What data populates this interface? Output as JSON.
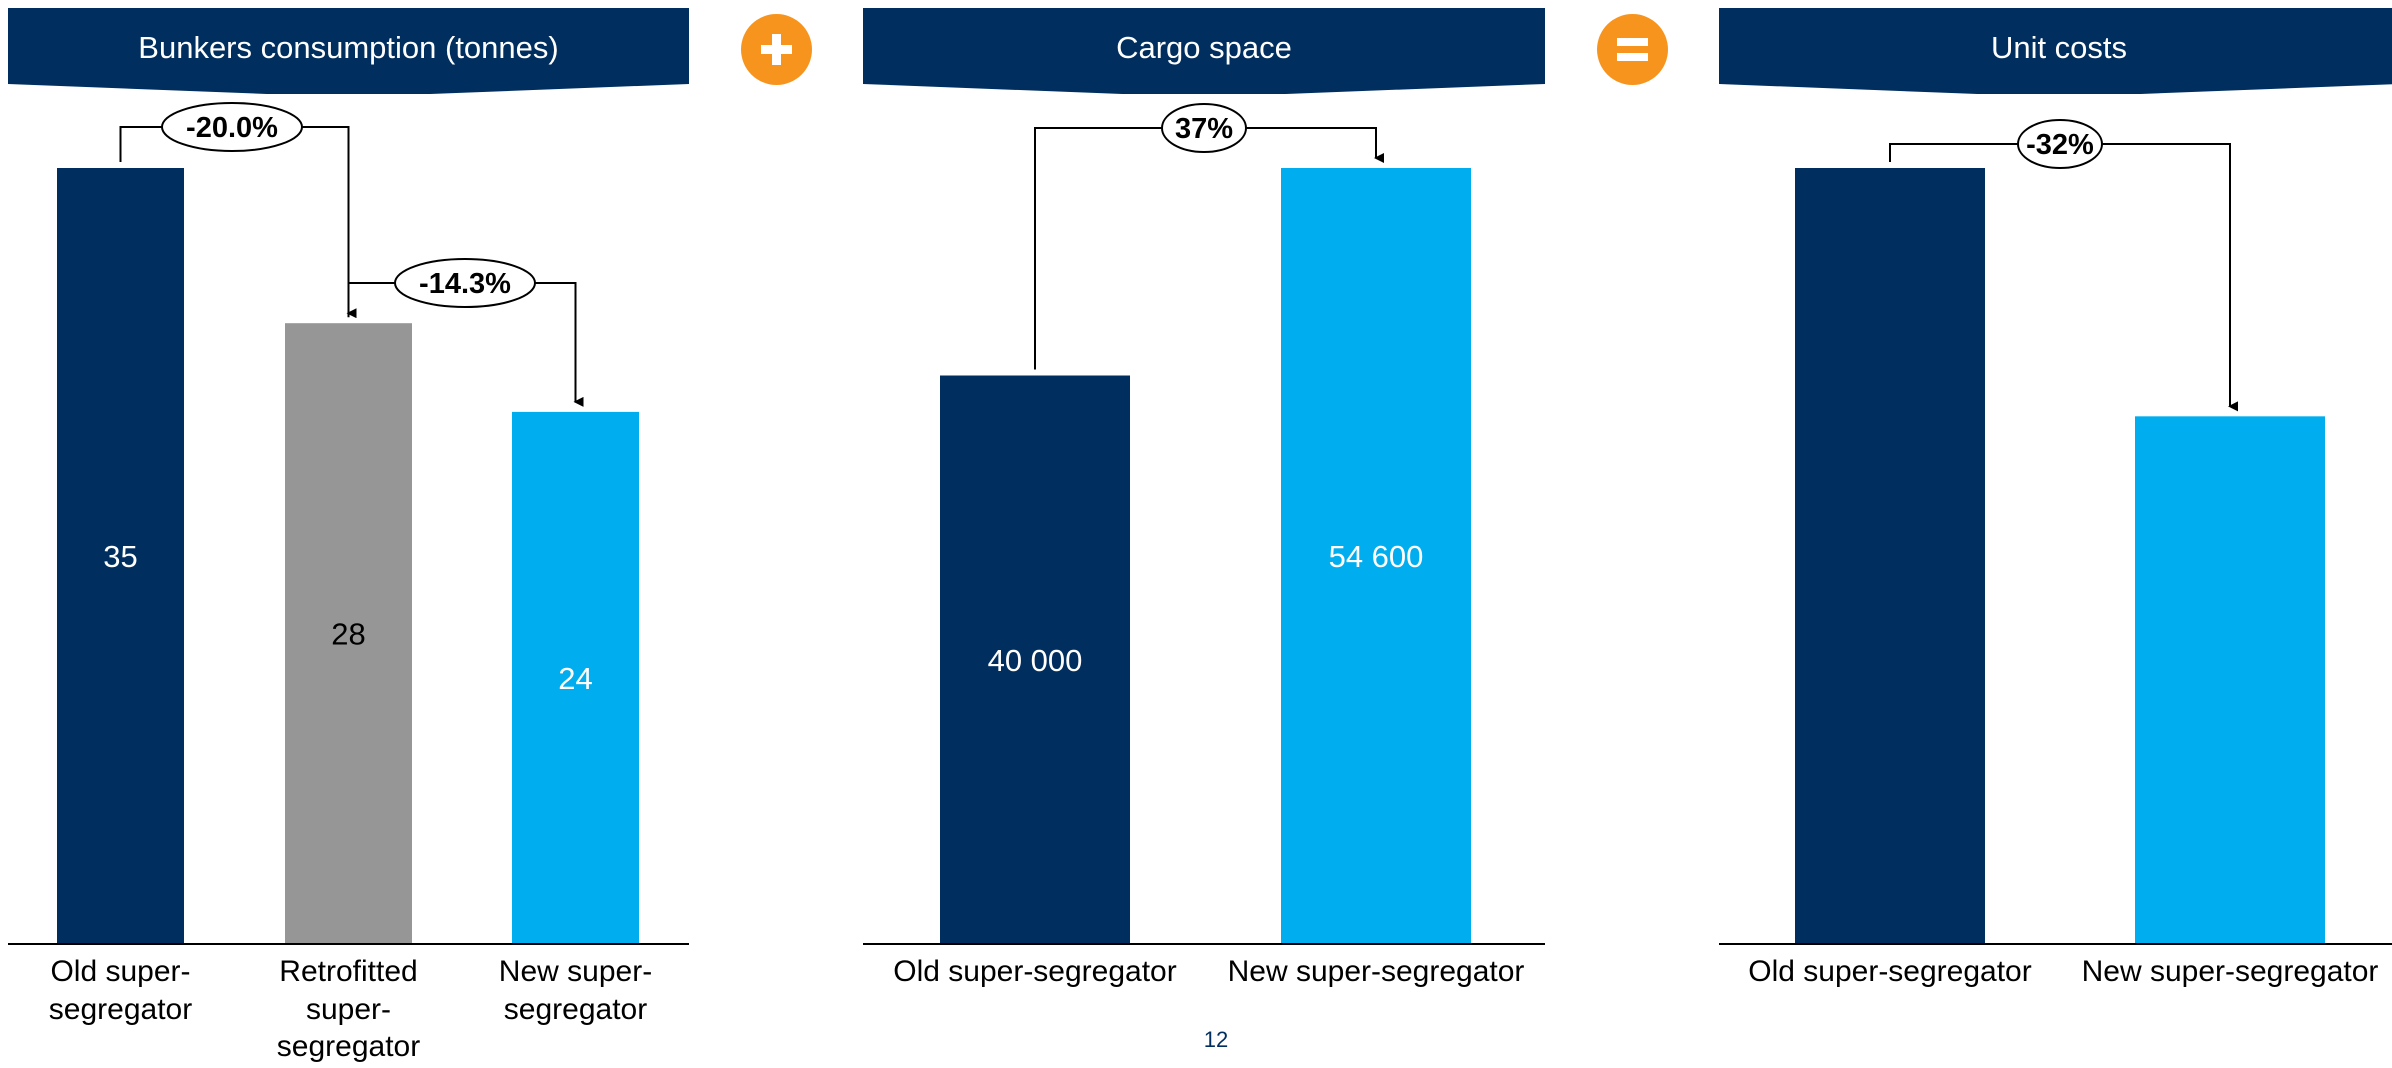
{
  "colors": {
    "navy": "#002f5f",
    "grey": "#969696",
    "cyan": "#00aeef",
    "orange": "#f7941d"
  },
  "operators": [
    {
      "symbol": "plus-icon"
    },
    {
      "symbol": "equals-icon"
    }
  ],
  "chart_data": [
    {
      "type": "bar",
      "title": "Bunkers consumption (tonnes)",
      "categories": [
        "Old super-segregator",
        "Retrofitted super-segregator",
        "New super-segregator"
      ],
      "category_lines": [
        [
          "Old super-",
          "segregator"
        ],
        [
          "Retrofitted",
          "super-",
          "segregator"
        ],
        [
          "New super-",
          "segregator"
        ]
      ],
      "values": [
        35,
        28,
        24
      ],
      "value_labels": [
        "35",
        "28",
        "24"
      ],
      "bar_colors": [
        "#002f5f",
        "#969696",
        "#00aeef"
      ],
      "label_colors": [
        "#ffffff",
        "#000000",
        "#ffffff"
      ],
      "ylim": [
        0,
        35
      ],
      "annotations": [
        {
          "from": 0,
          "to": 1,
          "text": "-20.0%"
        },
        {
          "from": 1,
          "to": 2,
          "text": "-14.3%"
        }
      ]
    },
    {
      "type": "bar",
      "title": "Cargo space",
      "categories": [
        "Old super-segregator",
        "New super-segregator"
      ],
      "category_lines": [
        [
          "Old super-segregator"
        ],
        [
          "New super-segregator"
        ]
      ],
      "values": [
        40000,
        54600
      ],
      "value_labels": [
        "40 000",
        "54 600"
      ],
      "bar_colors": [
        "#002f5f",
        "#00aeef"
      ],
      "label_colors": [
        "#ffffff",
        "#ffffff"
      ],
      "ylim": [
        0,
        54600
      ],
      "annotations": [
        {
          "from": 0,
          "to": 1,
          "text": "37%"
        }
      ]
    },
    {
      "type": "bar",
      "title": "Unit costs",
      "categories": [
        "Old super-segregator",
        "New super-segregator"
      ],
      "category_lines": [
        [
          "Old super-segregator"
        ],
        [
          "New super-segregator"
        ]
      ],
      "values": [
        1,
        0.68
      ],
      "value_labels": [
        "",
        ""
      ],
      "bar_colors": [
        "#002f5f",
        "#00aeef"
      ],
      "label_colors": [
        "#ffffff",
        "#ffffff"
      ],
      "ylim": [
        0,
        1
      ],
      "annotations": [
        {
          "from": 0,
          "to": 1,
          "text": "-32%"
        }
      ]
    }
  ],
  "footer": {
    "page_number": "12"
  }
}
